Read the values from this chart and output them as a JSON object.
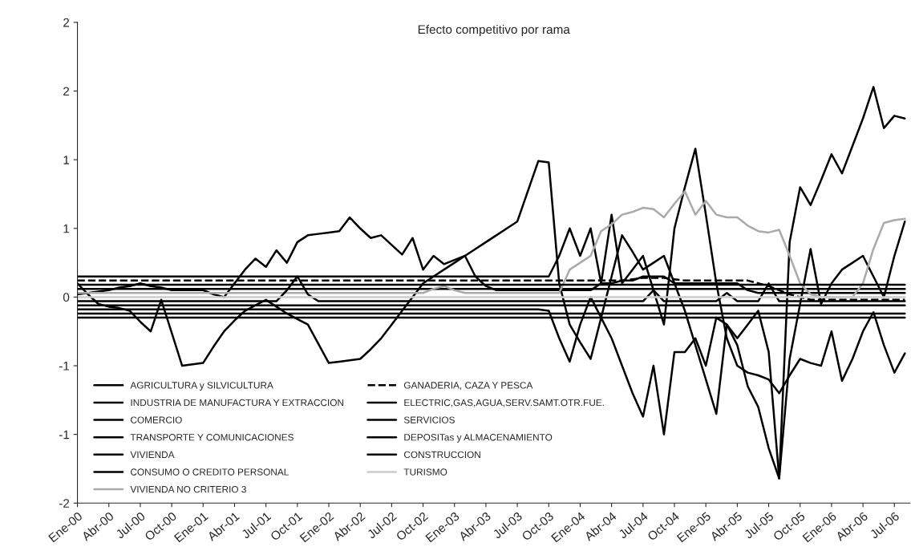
{
  "chart_data": {
    "type": "line",
    "title": "Efecto competitivo por rama",
    "categories": [
      "Ene-00",
      null,
      null,
      "Abr-00",
      null,
      null,
      "Jul-00",
      null,
      null,
      "Oct-00",
      null,
      null,
      "Ene-01",
      null,
      null,
      "Abr-01",
      null,
      null,
      "Jul-01",
      null,
      null,
      "Oct-01",
      null,
      null,
      "Ene-02",
      null,
      null,
      "Abr-02",
      null,
      null,
      "Jul-02",
      null,
      null,
      "Oct-02",
      null,
      null,
      "Ene-03",
      null,
      null,
      "Abr-03",
      null,
      null,
      "Jul-03",
      null,
      null,
      "Oct-03",
      null,
      null,
      "Ene-04",
      null,
      null,
      "Abr-04",
      null,
      null,
      "Jul-04",
      null,
      null,
      "Oct-04",
      null,
      null,
      "Ene-05",
      null,
      null,
      "Abr-05",
      null,
      null,
      "Jul-05",
      null,
      null,
      "Oct-05",
      null,
      null,
      "Ene-06",
      null,
      null,
      "Abr-06",
      null,
      null,
      "Jul-06",
      null
    ],
    "ylim": [
      -1.5,
      2.0
    ],
    "yticks": [
      {
        "value": 2.0,
        "label": "2"
      },
      {
        "value": 1.5,
        "label": "2"
      },
      {
        "value": 1.0,
        "label": "1"
      },
      {
        "value": 0.5,
        "label": "1"
      },
      {
        "value": 0,
        "label": "0"
      },
      {
        "value": -0.5,
        "label": "-1"
      },
      {
        "value": -1.0,
        "label": "-1"
      },
      {
        "value": -1.5,
        "label": "-2"
      }
    ],
    "grid": false,
    "legend": "bottom left",
    "series": [
      {
        "name": "AGRICULTURA y SILVICULTURA",
        "color": "#000000",
        "line_style": "solid",
        "values": [
          0.1,
          0.02,
          -0.05,
          -0.07,
          -0.08,
          -0.1,
          -0.18,
          -0.25,
          -0.02,
          -0.26,
          -0.5,
          -0.49,
          -0.48,
          -0.36,
          -0.25,
          -0.17,
          -0.1,
          -0.06,
          -0.02,
          -0.07,
          -0.12,
          -0.16,
          -0.2,
          -0.34,
          -0.48,
          -0.47,
          -0.46,
          -0.45,
          -0.38,
          -0.3,
          -0.2,
          -0.1,
          0,
          0.1,
          0.15,
          0.2,
          0.25,
          0.3,
          0.35,
          0.4,
          0.45,
          0.5,
          0.55,
          0.77,
          0.99,
          0.98,
          0.1,
          -0.2,
          -0.33,
          -0.45,
          -0.15,
          0.15,
          0.45,
          0.33,
          0.2,
          0.25,
          0.3,
          0.1,
          -0.1,
          -0.35,
          -0.6,
          -0.85,
          -0.2,
          -0.35,
          -0.65,
          -0.8,
          -1.1,
          -1.32,
          0.4,
          0.8,
          0.67,
          0.85,
          1.04,
          0.9,
          1.1,
          1.3,
          1.53,
          1.23,
          1.32,
          1.3
        ]
      },
      {
        "name": "INDUSTRIA DE MANUFACTURA Y EXTRACCION",
        "color": "#000000",
        "line_style": "solid",
        "values": [
          0.02,
          0.03,
          0.04,
          0.05,
          0.07,
          0.08,
          0.1,
          0.08,
          0.07,
          0.05,
          0.05,
          0.05,
          0.05,
          0.02,
          0,
          0.1,
          0.2,
          0.28,
          0.22,
          0.34,
          0.25,
          0.4,
          0.45,
          0.46,
          0.47,
          0.48,
          0.58,
          0.5,
          0.43,
          0.45,
          0.38,
          0.31,
          0.43,
          0.2,
          0.3,
          0.24,
          0.27,
          0.3,
          0.15,
          0.08,
          0.05,
          0.05,
          0.05,
          0.05,
          0.05,
          0.05,
          0.05,
          0.05,
          0.05,
          0.05,
          0.1,
          0.1,
          0.12,
          0.12,
          0.15,
          0.15,
          0.15,
          0.1,
          0.1,
          0.1,
          0.1,
          0.1,
          0.1,
          0.1,
          0.05,
          0.03,
          0.03,
          0.03,
          0.03,
          0.03,
          0.03,
          0.03,
          0.03,
          0.03,
          0.03,
          0.03,
          0.03,
          0.03,
          0.03,
          0.03
        ]
      },
      {
        "name": "COMERCIO",
        "color": "#000000",
        "line_style": "solid",
        "values": [
          0.15,
          0.15,
          0.15,
          0.15,
          0.15,
          0.15,
          0.15,
          0.15,
          0.15,
          0.15,
          0.15,
          0.15,
          0.15,
          0.15,
          0.15,
          0.15,
          0.15,
          0.15,
          0.15,
          0.15,
          0.15,
          0.15,
          0.15,
          0.15,
          0.15,
          0.15,
          0.15,
          0.15,
          0.15,
          0.15,
          0.15,
          0.15,
          0.15,
          0.15,
          0.15,
          0.15,
          0.15,
          0.15,
          0.15,
          0.15,
          0.15,
          0.15,
          0.15,
          0.15,
          0.15,
          0.15,
          0.3,
          0.5,
          0.3,
          0.5,
          0.1,
          0.6,
          0.1,
          0.2,
          0.3,
          0.05,
          -0.2,
          0.5,
          0.8,
          1.08,
          0.6,
          0.1,
          -0.3,
          -0.5,
          -0.55,
          -0.57,
          -0.6,
          -0.7,
          -0.57,
          -0.45,
          -0.48,
          -0.5,
          -0.25,
          -0.61,
          -0.45,
          -0.25,
          -0.11,
          -0.35,
          -0.55,
          -0.41
        ]
      },
      {
        "name": "TRANSPORTE Y COMUNICACIONES",
        "color": "#000000",
        "line_style": "solid",
        "values": [
          -0.09,
          -0.09,
          -0.09,
          -0.09,
          -0.09,
          -0.09,
          -0.09,
          -0.09,
          -0.09,
          -0.09,
          -0.09,
          -0.09,
          -0.09,
          -0.09,
          -0.09,
          -0.09,
          -0.09,
          -0.09,
          -0.09,
          -0.09,
          -0.09,
          -0.09,
          -0.09,
          -0.09,
          -0.09,
          -0.09,
          -0.09,
          -0.09,
          -0.09,
          -0.09,
          -0.09,
          -0.09,
          -0.09,
          -0.09,
          -0.09,
          -0.09,
          -0.09,
          -0.09,
          -0.09,
          -0.09,
          -0.09,
          -0.09,
          -0.09,
          -0.09,
          -0.09,
          -0.1,
          -0.3,
          -0.47,
          -0.2,
          0,
          -0.15,
          -0.3,
          -0.5,
          -0.7,
          -0.87,
          -0.5,
          -1.0,
          -0.4,
          -0.4,
          -0.3,
          -0.5,
          -0.15,
          -0.2,
          -0.3,
          -0.2,
          -0.1,
          -0.4,
          -1.32,
          -0.45,
          -0.05,
          0.35,
          -0.05,
          0.1,
          0.2,
          0.25,
          0.3,
          0.15,
          0,
          0.3,
          0.55
        ]
      },
      {
        "name": "VIVIENDA",
        "color": "#000000",
        "line_style": "solid",
        "values": [
          0.06,
          0.06,
          0.06,
          0.06,
          0.06,
          0.06,
          0.06,
          0.06,
          0.06,
          0.06,
          0.06,
          0.06,
          0.06,
          0.06,
          0.06,
          0.06,
          0.06,
          0.06,
          0.06,
          0.06,
          0.06,
          0.06,
          0.06,
          0.06,
          0.06,
          0.06,
          0.06,
          0.06,
          0.06,
          0.06,
          0.06,
          0.06,
          0.06,
          0.06,
          0.06,
          0.06,
          0.06,
          0.06,
          0.06,
          0.06,
          0.06,
          0.06,
          0.06,
          0.06,
          0.06,
          0.06,
          0.06,
          0.06,
          0.06,
          0.06,
          0.06,
          0.06,
          0.06,
          0.06,
          0.06,
          0.06,
          0.06,
          0.06,
          0.06,
          0.06,
          0.06,
          0.06,
          0.06,
          0.06,
          0.06,
          0.06,
          0.06,
          0.06,
          0.06,
          0.06,
          0.06,
          0.06,
          0.06,
          0.06,
          0.06,
          0.06,
          0.06,
          0.06,
          0.06,
          0.06
        ]
      },
      {
        "name": "CONSUMO O CREDITO PERSONAL",
        "color": "#000000",
        "line_style": "solid",
        "values": [
          -0.06,
          -0.06,
          -0.06,
          -0.06,
          -0.06,
          -0.06,
          -0.06,
          -0.06,
          -0.06,
          -0.06,
          -0.06,
          -0.06,
          -0.06,
          -0.06,
          -0.06,
          -0.06,
          -0.06,
          -0.06,
          -0.06,
          -0.06,
          -0.06,
          -0.06,
          -0.06,
          -0.06,
          -0.06,
          -0.06,
          -0.06,
          -0.06,
          -0.06,
          -0.06,
          -0.06,
          -0.06,
          -0.06,
          -0.06,
          -0.06,
          -0.06,
          -0.06,
          -0.06,
          -0.06,
          -0.06,
          -0.06,
          -0.06,
          -0.06,
          -0.06,
          -0.06,
          -0.06,
          -0.06,
          -0.06,
          -0.06,
          -0.06,
          -0.06,
          -0.06,
          -0.06,
          -0.06,
          -0.06,
          -0.06,
          -0.06,
          -0.06,
          -0.06,
          -0.06,
          -0.06,
          -0.06,
          -0.06,
          -0.06,
          -0.06,
          -0.06,
          -0.06,
          -0.06,
          -0.06,
          -0.06,
          -0.06,
          -0.06,
          -0.06,
          -0.06,
          -0.06,
          -0.06,
          -0.06,
          -0.06,
          -0.06,
          -0.06
        ]
      },
      {
        "name": "VIVIENDA NO CRITERIO 3",
        "color": "#aaaaaa",
        "line_style": "solid",
        "values": [
          0.03,
          0.03,
          0.03,
          0.03,
          0.03,
          0.03,
          0.03,
          0.03,
          0.03,
          0.03,
          0.03,
          0.03,
          0.03,
          0.03,
          0.03,
          0.03,
          0.03,
          0.03,
          0.03,
          0.03,
          0.03,
          0.03,
          0.03,
          0.03,
          0.03,
          0.03,
          0.03,
          0.03,
          0.03,
          0.03,
          0.03,
          0.03,
          0.03,
          0.03,
          0.06,
          0.08,
          0.05,
          0.03,
          0.03,
          0.03,
          0.03,
          0.03,
          0.03,
          0.03,
          0.03,
          0.03,
          0.03,
          0.2,
          0.25,
          0.3,
          0.48,
          0.53,
          0.6,
          0.62,
          0.65,
          0.64,
          0.58,
          0.68,
          0.77,
          0.6,
          0.7,
          0.6,
          0.58,
          0.58,
          0.52,
          0.48,
          0.47,
          0.49,
          0.3,
          0.1,
          0.02,
          0,
          0,
          0,
          0,
          0.1,
          0.35,
          0.54,
          0.56,
          0.57
        ]
      },
      {
        "name": "GANADERIA, CAZA Y PESCA",
        "color": "#000000",
        "line_style": "dashed",
        "values": [
          0.12,
          0.12,
          0.12,
          0.12,
          0.12,
          0.12,
          0.12,
          0.12,
          0.12,
          0.12,
          0.12,
          0.12,
          0.12,
          0.12,
          0.12,
          0.12,
          0.12,
          0.12,
          0.12,
          0.12,
          0.12,
          0.12,
          0.12,
          0.12,
          0.12,
          0.12,
          0.12,
          0.12,
          0.12,
          0.12,
          0.12,
          0.12,
          0.12,
          0.12,
          0.12,
          0.12,
          0.12,
          0.12,
          0.12,
          0.12,
          0.12,
          0.12,
          0.12,
          0.12,
          0.12,
          0.12,
          0.12,
          0.12,
          0.12,
          0.12,
          0.12,
          0.12,
          0.12,
          0.13,
          0.14,
          0.14,
          0.14,
          0.13,
          0.12,
          0.12,
          0.12,
          0.12,
          0.12,
          0.12,
          0.12,
          0.1,
          0.08,
          0.05,
          0.02,
          0,
          -0.02,
          -0.02,
          -0.02,
          -0.02,
          -0.02,
          -0.02,
          -0.02,
          -0.02,
          -0.02,
          -0.02
        ]
      },
      {
        "name": "ELECTRIC,GAS,AGUA,SERV.SAMT.OTR.FUE.",
        "color": "#000000",
        "line_style": "solid",
        "values": [
          -0.03,
          -0.03,
          -0.03,
          -0.03,
          -0.03,
          -0.03,
          -0.03,
          -0.03,
          -0.03,
          -0.03,
          -0.03,
          -0.03,
          -0.03,
          -0.03,
          -0.03,
          -0.03,
          -0.03,
          -0.03,
          -0.03,
          -0.03,
          0.05,
          0.15,
          0.02,
          -0.03,
          -0.03,
          -0.03,
          -0.03,
          -0.03,
          -0.03,
          -0.03,
          -0.03,
          -0.03,
          -0.03,
          -0.03,
          -0.03,
          -0.03,
          -0.03,
          -0.03,
          -0.03,
          -0.03,
          -0.03,
          -0.03,
          -0.03,
          -0.03,
          -0.03,
          -0.03,
          -0.03,
          -0.03,
          -0.03,
          -0.03,
          -0.03,
          -0.03,
          -0.03,
          -0.03,
          -0.03,
          0.05,
          -0.03,
          -0.03,
          -0.03,
          -0.03,
          -0.03,
          -0.03,
          0.03,
          -0.03,
          -0.03,
          -0.03,
          0.1,
          -0.03,
          -0.03,
          -0.03,
          -0.03,
          -0.03,
          -0.03,
          -0.03,
          -0.03,
          -0.03,
          -0.03,
          -0.03,
          -0.03,
          -0.03
        ]
      },
      {
        "name": "SERVICIOS",
        "color": "#000000",
        "line_style": "solid",
        "values": [
          0.09,
          0.09,
          0.09,
          0.09,
          0.09,
          0.09,
          0.09,
          0.09,
          0.09,
          0.09,
          0.09,
          0.09,
          0.09,
          0.09,
          0.09,
          0.09,
          0.09,
          0.09,
          0.09,
          0.09,
          0.09,
          0.09,
          0.09,
          0.09,
          0.09,
          0.09,
          0.09,
          0.09,
          0.09,
          0.09,
          0.09,
          0.09,
          0.09,
          0.09,
          0.09,
          0.09,
          0.09,
          0.09,
          0.09,
          0.09,
          0.09,
          0.09,
          0.09,
          0.09,
          0.09,
          0.09,
          0.09,
          0.09,
          0.09,
          0.09,
          0.09,
          0.09,
          0.09,
          0.09,
          0.09,
          0.09,
          0.09,
          0.09,
          0.09,
          0.09,
          0.09,
          0.09,
          0.09,
          0.09,
          0.09,
          0.09,
          0.09,
          0.09,
          0.09,
          0.09,
          0.09,
          0.09,
          0.09,
          0.09,
          0.09,
          0.09,
          0.09,
          0.09,
          0.09,
          0.09
        ]
      },
      {
        "name": "DEPOSITas y ALMACENAMIENTO",
        "color": "#000000",
        "line_style": "solid",
        "values": [
          -0.12,
          -0.12,
          -0.12,
          -0.12,
          -0.12,
          -0.12,
          -0.12,
          -0.12,
          -0.12,
          -0.12,
          -0.12,
          -0.12,
          -0.12,
          -0.12,
          -0.12,
          -0.12,
          -0.12,
          -0.12,
          -0.12,
          -0.12,
          -0.12,
          -0.12,
          -0.12,
          -0.12,
          -0.12,
          -0.12,
          -0.12,
          -0.12,
          -0.12,
          -0.12,
          -0.12,
          -0.12,
          -0.12,
          -0.12,
          -0.12,
          -0.12,
          -0.12,
          -0.12,
          -0.12,
          -0.12,
          -0.12,
          -0.12,
          -0.12,
          -0.12,
          -0.12,
          -0.12,
          -0.12,
          -0.12,
          -0.12,
          -0.12,
          -0.12,
          -0.12,
          -0.12,
          -0.12,
          -0.12,
          -0.12,
          -0.12,
          -0.12,
          -0.12,
          -0.12,
          -0.12,
          -0.12,
          -0.12,
          -0.12,
          -0.12,
          -0.12,
          -0.12,
          -0.12,
          -0.12,
          -0.12,
          -0.12,
          -0.12,
          -0.12,
          -0.12,
          -0.12,
          -0.12,
          -0.12,
          -0.12,
          -0.12,
          -0.12
        ]
      },
      {
        "name": "CONSTRUCCION",
        "color": "#000000",
        "line_style": "solid",
        "values": [
          -0.15,
          -0.15,
          -0.15,
          -0.15,
          -0.15,
          -0.15,
          -0.15,
          -0.15,
          -0.15,
          -0.15,
          -0.15,
          -0.15,
          -0.15,
          -0.15,
          -0.15,
          -0.15,
          -0.15,
          -0.15,
          -0.15,
          -0.15,
          -0.15,
          -0.15,
          -0.15,
          -0.15,
          -0.15,
          -0.15,
          -0.15,
          -0.15,
          -0.15,
          -0.15,
          -0.15,
          -0.15,
          -0.15,
          -0.15,
          -0.15,
          -0.15,
          -0.15,
          -0.15,
          -0.15,
          -0.15,
          -0.15,
          -0.15,
          -0.15,
          -0.15,
          -0.15,
          -0.15,
          -0.15,
          -0.15,
          -0.15,
          -0.15,
          -0.15,
          -0.15,
          -0.15,
          -0.15,
          -0.15,
          -0.15,
          -0.15,
          -0.15,
          -0.15,
          -0.15,
          -0.15,
          -0.15,
          -0.15,
          -0.15,
          -0.15,
          -0.15,
          -0.15,
          -0.15,
          -0.15,
          -0.15,
          -0.15,
          -0.15,
          -0.15,
          -0.15,
          -0.15,
          -0.15,
          -0.15,
          -0.15,
          -0.15,
          -0.15
        ]
      },
      {
        "name": "TURISMO",
        "color": "#cccccc",
        "line_style": "solid",
        "values": [
          0,
          0,
          0,
          0,
          0,
          0,
          0,
          0,
          0,
          0,
          0,
          0,
          0,
          0,
          0,
          0,
          0,
          0,
          0,
          0,
          0,
          0,
          0,
          0,
          0,
          0,
          0,
          0,
          0,
          0,
          0,
          0,
          0,
          0,
          0,
          0,
          0,
          0,
          0,
          0,
          0,
          0,
          0,
          0,
          0,
          0,
          0,
          0,
          0,
          0,
          0,
          0,
          0,
          0,
          0,
          0,
          0,
          0,
          0,
          0,
          0,
          0,
          0,
          0,
          0,
          0,
          0,
          0,
          0,
          0,
          0,
          0,
          0,
          0,
          0,
          0,
          0,
          0,
          0,
          0
        ]
      }
    ]
  }
}
